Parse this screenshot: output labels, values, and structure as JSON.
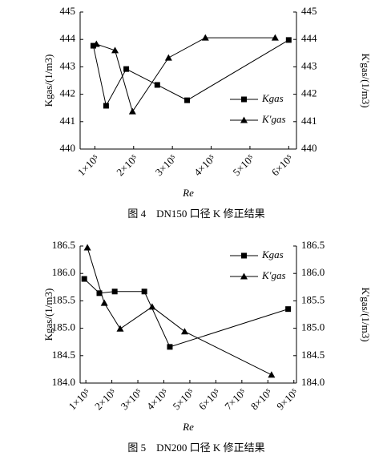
{
  "chart_data": [
    {
      "type": "line",
      "caption": "图 4　DN150 口径 K 修正结果",
      "x_label": "Re",
      "y_label": "Kgas/(1/m3)",
      "y2_label": "K'gas/(1/m3)",
      "xlim": [
        62000,
        620000
      ],
      "xticks": [
        {
          "value": 100000,
          "label": "1×10⁵"
        },
        {
          "value": 200000,
          "label": "2×10⁵"
        },
        {
          "value": 300000,
          "label": "3×10⁵"
        },
        {
          "value": 400000,
          "label": "4×10⁵"
        },
        {
          "value": 500000,
          "label": "5×10⁵"
        },
        {
          "value": 600000,
          "label": "6×10⁵"
        }
      ],
      "ylim": [
        440,
        445
      ],
      "yticks": [
        440,
        441,
        442,
        443,
        444,
        445
      ],
      "y2lim": [
        440,
        445
      ],
      "y2ticks": [
        440,
        441,
        442,
        443,
        444,
        445
      ],
      "legend": "lower right",
      "series": [
        {
          "name": "Kgas",
          "marker": "square",
          "color": "#000000",
          "x": [
            96000,
            129000,
            181000,
            261000,
            338000,
            600000
          ],
          "values": [
            443.77,
            441.58,
            442.92,
            442.34,
            441.78,
            443.98
          ]
        },
        {
          "name": "K'gas",
          "marker": "triangle",
          "color": "#000000",
          "axis": "y2",
          "x": [
            104000,
            152000,
            197000,
            290000,
            385000,
            565000
          ],
          "values": [
            443.83,
            443.6,
            441.37,
            443.33,
            444.06,
            444.06
          ]
        }
      ]
    },
    {
      "type": "line",
      "caption": "图 5　DN200 口径 K 修正结果",
      "x_label": "Re",
      "y_label": "Kgas/(1/m3)",
      "y2_label": "K'gas/(1/m3)",
      "xlim": [
        78000,
        910000
      ],
      "xticks": [
        {
          "value": 100000,
          "label": "1×10⁵"
        },
        {
          "value": 200000,
          "label": "2×10⁵"
        },
        {
          "value": 300000,
          "label": "3×10⁵"
        },
        {
          "value": 400000,
          "label": "4×10⁵"
        },
        {
          "value": 500000,
          "label": "5×10⁵"
        },
        {
          "value": 600000,
          "label": "6×10⁵"
        },
        {
          "value": 700000,
          "label": "7×10⁵"
        },
        {
          "value": 800000,
          "label": "8×10⁵"
        },
        {
          "value": 900000,
          "label": "9×10⁵"
        }
      ],
      "ylim": [
        184,
        186.5
      ],
      "yticks": [
        {
          "value": 184,
          "label": "184.0"
        },
        184.5,
        {
          "value": 185,
          "label": "185.0"
        },
        185.5,
        {
          "value": 186,
          "label": "186.0"
        },
        186.5
      ],
      "y2lim": [
        184,
        186.5
      ],
      "y2ticks": [
        {
          "value": 184,
          "label": "184.0"
        },
        184.5,
        {
          "value": 185,
          "label": "185.0"
        },
        185.5,
        {
          "value": 186,
          "label": "186.0"
        },
        186.5
      ],
      "legend": "upper right",
      "series": [
        {
          "name": "Kgas",
          "marker": "square",
          "color": "#000000",
          "x": [
            94000,
            152000,
            211000,
            325000,
            423000,
            878000
          ],
          "values": [
            185.9,
            185.64,
            185.67,
            185.67,
            184.66,
            185.35
          ]
        },
        {
          "name": "K'gas",
          "marker": "triangle",
          "color": "#000000",
          "axis": "y2",
          "x": [
            106000,
            171000,
            232000,
            355000,
            480000,
            814000
          ],
          "values": [
            186.47,
            185.46,
            184.99,
            185.39,
            184.94,
            184.15
          ]
        }
      ]
    }
  ]
}
